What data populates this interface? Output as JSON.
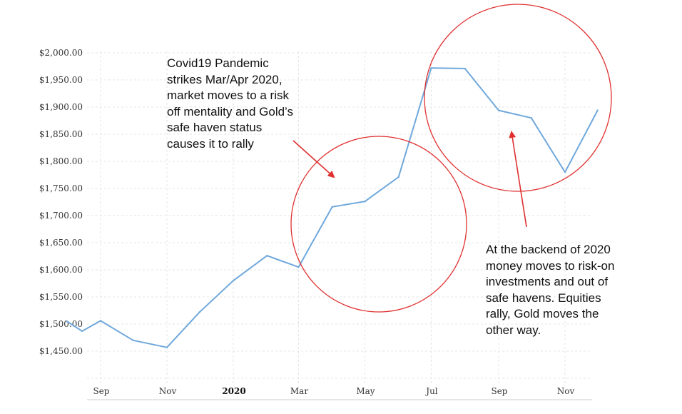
{
  "chart_data": {
    "type": "line",
    "x": [
      "2019-08-01",
      "2019-08-15",
      "2019-09-01",
      "2019-10-01",
      "2019-11-01",
      "2019-12-01",
      "2020-01-01",
      "2020-02-01",
      "2020-03-01",
      "2020-04-01",
      "2020-05-01",
      "2020-06-01",
      "2020-07-01",
      "2020-08-01",
      "2020-09-01",
      "2020-10-01",
      "2020-11-01",
      "2020-12-01"
    ],
    "series": [
      {
        "values": [
          1505,
          1487,
          1506,
          1470,
          1457,
          1522,
          1580,
          1626,
          1605,
          1716,
          1726,
          1771,
          1972,
          1971,
          1894,
          1880,
          1780,
          1894
        ],
        "color": "#6fa8dc"
      }
    ],
    "y_tick_labels": [
      "$2,000.00",
      "$1,950.00",
      "$1,900.00",
      "$1,850.00",
      "$1,800.00",
      "$1,750.00",
      "$1,700.00",
      "$1,650.00",
      "$1,600.00",
      "$1,550.00",
      "$1,500.00",
      "$1,450.00"
    ],
    "y_ticks": [
      2000,
      1950,
      1900,
      1850,
      1800,
      1750,
      1700,
      1650,
      1600,
      1550,
      1500,
      1450
    ],
    "ylim": [
      1400,
      2000
    ],
    "x_ticks": [
      {
        "label": "Sep",
        "bold": false
      },
      {
        "label": "Nov",
        "bold": false
      },
      {
        "label": "2020",
        "bold": true
      },
      {
        "label": "Mar",
        "bold": false
      },
      {
        "label": "May",
        "bold": false
      },
      {
        "label": "Jul",
        "bold": false
      },
      {
        "label": "Sep",
        "bold": false
      },
      {
        "label": "Nov",
        "bold": false
      }
    ],
    "grid": true,
    "title": "",
    "xlabel": "",
    "ylabel": "",
    "annotation_color": "#e03030"
  },
  "annotations": {
    "covid_note": "Covid19 Pandemic\nstrikes Mar/Apr 2020,\nmarket moves to a risk\noff mentality and Gold’s\nsafe haven status\ncauses it to rally",
    "backend_note": "At the backend of 2020\nmoney moves to risk-on\ninvestments and out of\nsafe havens. Equities\nrally, Gold moves the\nother way."
  }
}
